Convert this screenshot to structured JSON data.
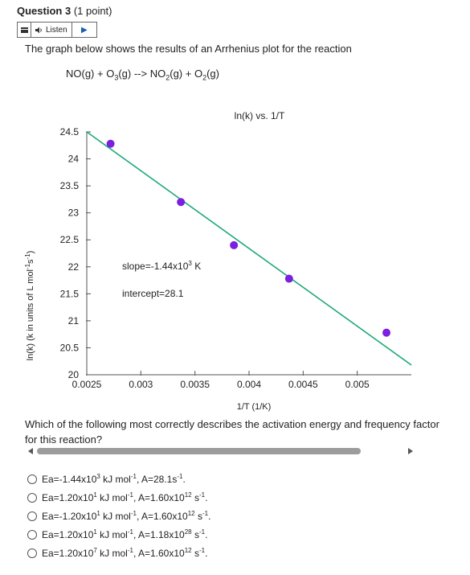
{
  "question": {
    "number_label": "Question 3",
    "points": "(1 point)",
    "listen_label": "Listen",
    "intro": "The graph below shows the results of an Arrhenius plot for the reaction",
    "prompt": "Which of the following most correctly describes the activation energy and frequency factor for this reaction?"
  },
  "reaction": {
    "r1": "NO(g) + O",
    "r1_sub": "3",
    "r2": "(g) --> NO",
    "r2_sub": "2",
    "r3": "(g) + O",
    "r3_sub": "2",
    "r4": "(g)"
  },
  "options": [
    {
      "a": "Ea=-1.44x10",
      "a_sup": "3",
      "b": " kJ mol",
      "b_sup": "-1",
      "c": ", A=28.1s",
      "c_sup": "-1",
      "d": ".",
      "d_sup": "",
      "e": ""
    },
    {
      "a": "Ea=1.20x10",
      "a_sup": "1",
      "b": " kJ mol",
      "b_sup": "-1",
      "c": ", A=1.60x10",
      "c_sup": "12",
      "d": " s",
      "d_sup": "-1",
      "e": "."
    },
    {
      "a": "Ea=-1.20x10",
      "a_sup": "1",
      "b": " kJ mol",
      "b_sup": "-1",
      "c": ", A=1.60x10",
      "c_sup": "12",
      "d": " s",
      "d_sup": "-1",
      "e": "."
    },
    {
      "a": "Ea=1.20x10",
      "a_sup": "1",
      "b": " kJ mol",
      "b_sup": "-1",
      "c": ", A=1.18x10",
      "c_sup": "28",
      "d": " s",
      "d_sup": "-1",
      "e": "."
    },
    {
      "a": "Ea=1.20x10",
      "a_sup": "7",
      "b": " kJ mol",
      "b_sup": "-1",
      "c": ", A=1.60x10",
      "c_sup": "12",
      "d": " s",
      "d_sup": "-1",
      "e": "."
    }
  ],
  "chart_data": {
    "type": "scatter",
    "title": "ln(k) vs. 1/T",
    "xlabel": "1/T (1/K)",
    "ylabel": "ln(k) (k in units of L mol",
    "ylabel_sup1": "-1",
    "ylabel_mid": "s",
    "ylabel_sup2": "-1",
    "ylabel_end": ")",
    "xlim": [
      0.0025,
      0.0055
    ],
    "ylim": [
      20,
      24.5
    ],
    "xticks": [
      0.0025,
      0.003,
      0.0035,
      0.004,
      0.0045,
      0.005
    ],
    "xtick_labels": [
      "0.0025",
      "0.003",
      "0.0035",
      "0.004",
      "0.0045",
      "0.005"
    ],
    "yticks": [
      20,
      20.5,
      21,
      21.5,
      22,
      22.5,
      23,
      23.5,
      24,
      24.5
    ],
    "ytick_labels": [
      "20",
      "20.5",
      "21",
      "21.5",
      "22",
      "22.5",
      "23",
      "23.5",
      "24",
      "24.5"
    ],
    "points": [
      {
        "x": 0.00272,
        "y": 24.28
      },
      {
        "x": 0.00337,
        "y": 23.2
      },
      {
        "x": 0.00386,
        "y": 22.4
      },
      {
        "x": 0.00437,
        "y": 21.78
      },
      {
        "x": 0.00527,
        "y": 20.78
      }
    ],
    "fit_line": {
      "slope": -1440,
      "intercept": 28.1
    },
    "annotations": [
      {
        "text": "slope=-1.44x10",
        "sup": "3",
        "tail": " K"
      },
      {
        "text": "intercept=28.1"
      }
    ],
    "colors": {
      "points": "#7b1fe0",
      "line": "#1faa7a",
      "axis": "#555555"
    }
  }
}
